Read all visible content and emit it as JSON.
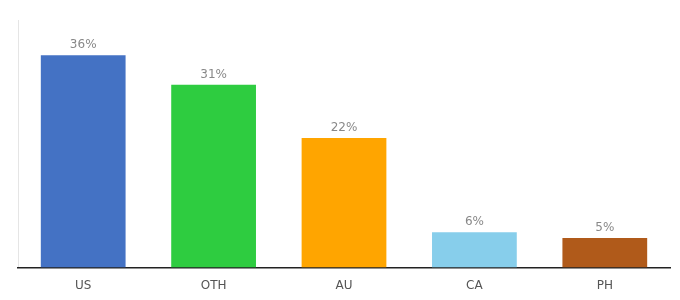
{
  "chart_data": {
    "type": "bar",
    "categories": [
      "US",
      "OTH",
      "AU",
      "CA",
      "PH"
    ],
    "values": [
      36,
      31,
      22,
      6,
      5
    ],
    "value_labels": [
      "36%",
      "31%",
      "22%",
      "6%",
      "5%"
    ],
    "colors": [
      "#4472C4",
      "#2ECC40",
      "#FFA500",
      "#87CEEB",
      "#B05A1A"
    ],
    "ylim": [
      0,
      42
    ],
    "grid": false,
    "data_labels": true,
    "tick_labels": "x"
  }
}
